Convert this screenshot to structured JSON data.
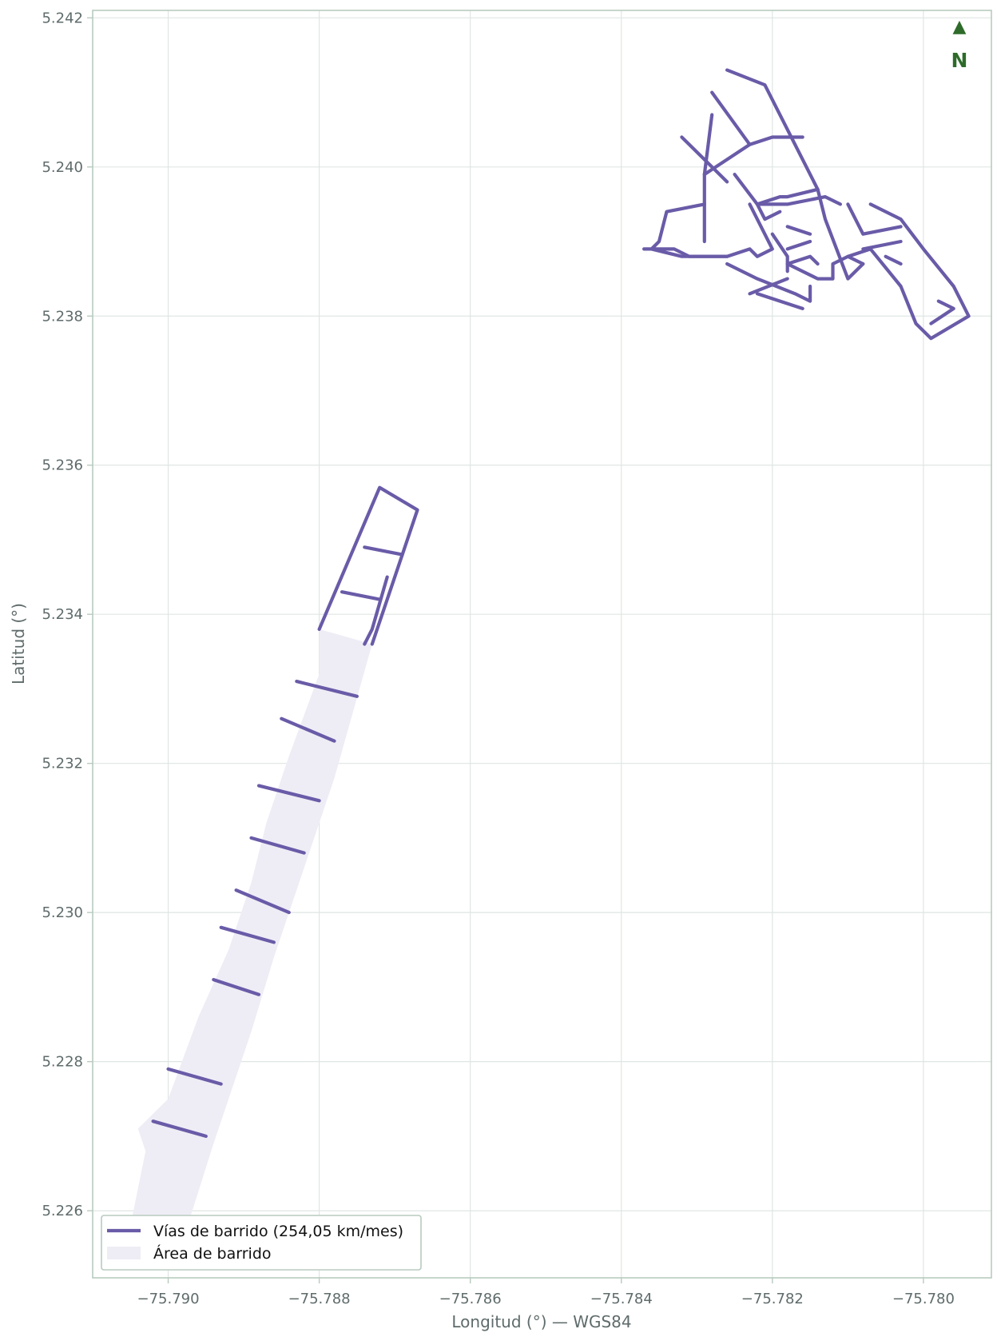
{
  "chart_data": {
    "type": "map",
    "xlabel": "Longitud (°) — WGS84",
    "ylabel": "Latitud (°)",
    "xlim": [
      -75.791,
      -75.7791
    ],
    "ylim": [
      5.2251,
      5.2421
    ],
    "grid": true,
    "x_ticks": [
      {
        "value": -75.79,
        "label": "−75.790"
      },
      {
        "value": -75.788,
        "label": "−75.788"
      },
      {
        "value": -75.786,
        "label": "−75.786"
      },
      {
        "value": -75.784,
        "label": "−75.784"
      },
      {
        "value": -75.782,
        "label": "−75.782"
      },
      {
        "value": -75.78,
        "label": "−75.780"
      }
    ],
    "y_ticks": [
      {
        "value": 5.226,
        "label": "5.226"
      },
      {
        "value": 5.228,
        "label": "5.228"
      },
      {
        "value": 5.23,
        "label": "5.230"
      },
      {
        "value": 5.232,
        "label": "5.232"
      },
      {
        "value": 5.234,
        "label": "5.234"
      },
      {
        "value": 5.236,
        "label": "5.236"
      },
      {
        "value": 5.238,
        "label": "5.238"
      },
      {
        "value": 5.24,
        "label": "5.240"
      },
      {
        "value": 5.242,
        "label": "5.242"
      }
    ],
    "legend": {
      "placement": "lower-left",
      "entries": [
        {
          "label": "Vías de barrido (254,05 km/mes)",
          "kind": "line"
        },
        {
          "label": "Área de barrido",
          "kind": "area"
        }
      ]
    },
    "north_arrow": {
      "symbol": "▲",
      "label": "N",
      "color": "#2e6b2a",
      "placement": "top-right"
    },
    "colors": {
      "road": "#6a5ba8",
      "area": "#eeedf5",
      "grid": "#dfe6e3",
      "frame": "#b8cbbf",
      "text": "#5f6b6b"
    },
    "area_polygon": [
      [
        -75.788,
        5.2338
      ],
      [
        -75.7873,
        5.2336
      ],
      [
        -75.7878,
        5.2318
      ],
      [
        -75.7882,
        5.2306
      ],
      [
        -75.7886,
        5.2294
      ],
      [
        -75.7889,
        5.2284
      ],
      [
        -75.7894,
        5.2269
      ],
      [
        -75.7899,
        5.2253
      ],
      [
        -75.7906,
        5.2253
      ],
      [
        -75.7903,
        5.2268
      ],
      [
        -75.7904,
        5.2271
      ],
      [
        -75.79,
        5.2275
      ],
      [
        -75.7896,
        5.2286
      ],
      [
        -75.7892,
        5.2295
      ],
      [
        -75.7889,
        5.2304
      ],
      [
        -75.7887,
        5.2312
      ],
      [
        -75.7884,
        5.2321
      ],
      [
        -75.788,
        5.2332
      ]
    ],
    "roads": [
      [
        [
          -75.788,
          5.2338
        ],
        [
          -75.7872,
          5.2357
        ],
        [
          -75.7867,
          5.2354
        ],
        [
          -75.7873,
          5.2336
        ]
      ],
      [
        [
          -75.7874,
          5.2349
        ],
        [
          -75.7869,
          5.2348
        ]
      ],
      [
        [
          -75.7877,
          5.2343
        ],
        [
          -75.7872,
          5.2342
        ]
      ],
      [
        [
          -75.7871,
          5.2345
        ],
        [
          -75.7873,
          5.2338
        ],
        [
          -75.7874,
          5.2336
        ]
      ],
      [
        [
          -75.7883,
          5.2331
        ],
        [
          -75.7875,
          5.2329
        ]
      ],
      [
        [
          -75.7885,
          5.2326
        ],
        [
          -75.7878,
          5.2323
        ]
      ],
      [
        [
          -75.7888,
          5.2317
        ],
        [
          -75.788,
          5.2315
        ]
      ],
      [
        [
          -75.7889,
          5.231
        ],
        [
          -75.7882,
          5.2308
        ]
      ],
      [
        [
          -75.7891,
          5.2303
        ],
        [
          -75.7884,
          5.23
        ]
      ],
      [
        [
          -75.7893,
          5.2298
        ],
        [
          -75.7886,
          5.2296
        ]
      ],
      [
        [
          -75.7894,
          5.2291
        ],
        [
          -75.7888,
          5.2289
        ]
      ],
      [
        [
          -75.79,
          5.2279
        ],
        [
          -75.7893,
          5.2277
        ]
      ],
      [
        [
          -75.7902,
          5.2272
        ],
        [
          -75.7895,
          5.227
        ]
      ],
      [
        [
          -75.7826,
          5.2413
        ],
        [
          -75.7821,
          5.2411
        ],
        [
          -75.7814,
          5.2397
        ],
        [
          -75.7813,
          5.2393
        ],
        [
          -75.781,
          5.2385
        ],
        [
          -75.7808,
          5.2387
        ]
      ],
      [
        [
          -75.7828,
          5.241
        ],
        [
          -75.7823,
          5.2403
        ],
        [
          -75.7829,
          5.2399
        ],
        [
          -75.7828,
          5.2407
        ]
      ],
      [
        [
          -75.7832,
          5.2404
        ],
        [
          -75.7826,
          5.2398
        ]
      ],
      [
        [
          -75.7823,
          5.2403
        ],
        [
          -75.782,
          5.2404
        ],
        [
          -75.7816,
          5.2404
        ]
      ],
      [
        [
          -75.7829,
          5.2399
        ],
        [
          -75.7829,
          5.2392
        ],
        [
          -75.7829,
          5.239
        ]
      ],
      [
        [
          -75.7825,
          5.2399
        ],
        [
          -75.7822,
          5.2395
        ],
        [
          -75.7819,
          5.2396
        ],
        [
          -75.7818,
          5.2396
        ],
        [
          -75.7814,
          5.2397
        ]
      ],
      [
        [
          -75.7822,
          5.2395
        ],
        [
          -75.7818,
          5.2395
        ],
        [
          -75.7813,
          5.2396
        ],
        [
          -75.7811,
          5.2395
        ]
      ],
      [
        [
          -75.7822,
          5.2395
        ],
        [
          -75.7821,
          5.2393
        ],
        [
          -75.7819,
          5.2394
        ]
      ],
      [
        [
          -75.7829,
          5.2395
        ],
        [
          -75.7834,
          5.2394
        ],
        [
          -75.7835,
          5.239
        ],
        [
          -75.7836,
          5.2389
        ],
        [
          -75.7832,
          5.2388
        ],
        [
          -75.7826,
          5.2388
        ]
      ],
      [
        [
          -75.7837,
          5.2389
        ],
        [
          -75.7835,
          5.2389
        ],
        [
          -75.7833,
          5.2389
        ],
        [
          -75.7831,
          5.2388
        ],
        [
          -75.7826,
          5.2388
        ],
        [
          -75.7823,
          5.2389
        ],
        [
          -75.7822,
          5.2388
        ],
        [
          -75.782,
          5.2389
        ],
        [
          -75.7823,
          5.2395
        ]
      ],
      [
        [
          -75.782,
          5.2391
        ],
        [
          -75.7818,
          5.2388
        ],
        [
          -75.7818,
          5.2386
        ]
      ],
      [
        [
          -75.7818,
          5.2392
        ],
        [
          -75.7815,
          5.2391
        ]
      ],
      [
        [
          -75.7818,
          5.2389
        ],
        [
          -75.7815,
          5.239
        ]
      ],
      [
        [
          -75.7818,
          5.2387
        ],
        [
          -75.7815,
          5.2388
        ],
        [
          -75.7814,
          5.2387
        ]
      ],
      [
        [
          -75.7807,
          5.2395
        ],
        [
          -75.7803,
          5.2393
        ],
        [
          -75.78,
          5.2389
        ],
        [
          -75.7796,
          5.2384
        ],
        [
          -75.7794,
          5.238
        ],
        [
          -75.7799,
          5.2377
        ],
        [
          -75.7801,
          5.2379
        ],
        [
          -75.7803,
          5.2384
        ],
        [
          -75.7807,
          5.2389
        ],
        [
          -75.781,
          5.2388
        ],
        [
          -75.7808,
          5.2387
        ]
      ],
      [
        [
          -75.781,
          5.2395
        ],
        [
          -75.7808,
          5.2391
        ],
        [
          -75.7803,
          5.2392
        ]
      ],
      [
        [
          -75.7808,
          5.2389
        ],
        [
          -75.7803,
          5.239
        ]
      ],
      [
        [
          -75.7805,
          5.2388
        ],
        [
          -75.7803,
          5.2387
        ]
      ],
      [
        [
          -75.7798,
          5.2382
        ],
        [
          -75.7796,
          5.2381
        ],
        [
          -75.7799,
          5.2379
        ]
      ],
      [
        [
          -75.7818,
          5.2387
        ],
        [
          -75.7814,
          5.2385
        ],
        [
          -75.7812,
          5.2385
        ],
        [
          -75.7812,
          5.2387
        ],
        [
          -75.781,
          5.2388
        ]
      ],
      [
        [
          -75.7826,
          5.2387
        ],
        [
          -75.7822,
          5.2385
        ],
        [
          -75.7817,
          5.2383
        ],
        [
          -75.7815,
          5.2382
        ],
        [
          -75.7815,
          5.2384
        ]
      ],
      [
        [
          -75.7818,
          5.2385
        ],
        [
          -75.7823,
          5.2383
        ]
      ],
      [
        [
          -75.7822,
          5.2383
        ],
        [
          -75.7816,
          5.2381
        ]
      ]
    ]
  }
}
